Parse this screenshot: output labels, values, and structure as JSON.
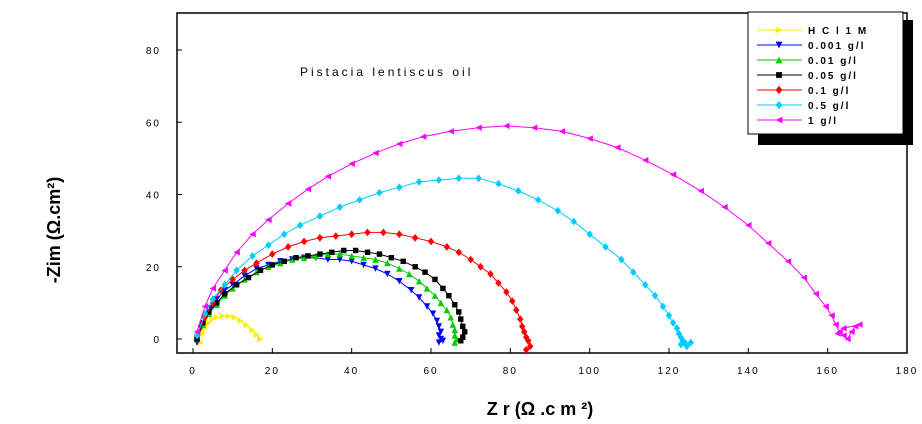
{
  "chart_data": {
    "type": "scatter",
    "xlabel": "Z r  (Ω .c m ²)",
    "ylabel": "-Zim  (Ω.cm²)",
    "xlim": [
      -5,
      180
    ],
    "ylim": [
      -4,
      90
    ],
    "xticks": [
      "0",
      "20",
      "40",
      "60",
      "80",
      "100",
      "120",
      "140",
      "160",
      "180"
    ],
    "yticks": [
      "0",
      "20",
      "40",
      "60",
      "80"
    ],
    "grid": false,
    "legend_position": "top-right",
    "annotation": "Pistacia lentiscus oil",
    "series": [
      {
        "name": "H C l 1 M",
        "color": "#ffee00",
        "marker": "triangle-right",
        "x": [
          2,
          2.5,
          3,
          4,
          5,
          6,
          7.5,
          9,
          10.5,
          12,
          13.5,
          15,
          16,
          17
        ],
        "y": [
          -1,
          1.5,
          3,
          4.5,
          5.5,
          6,
          6.3,
          6.3,
          6,
          5,
          3.8,
          2.5,
          1.2,
          0
        ]
      },
      {
        "name": "0.001 g/l",
        "color": "#0000ff",
        "marker": "triangle-down",
        "x": [
          1,
          2,
          3,
          4.5,
          6,
          8,
          10,
          13,
          16,
          19,
          22,
          25,
          28,
          31,
          34,
          37,
          40,
          43,
          46,
          49,
          52,
          55,
          57,
          59,
          60.5,
          61.5,
          62,
          62.5,
          62,
          62.5,
          63,
          62
        ],
        "y": [
          -1,
          3,
          6,
          8.5,
          11,
          13.5,
          15,
          17.5,
          19.5,
          20.5,
          21.5,
          22,
          22.5,
          22.5,
          22,
          22,
          21.5,
          20.5,
          19.5,
          18,
          16,
          13.5,
          11.5,
          9,
          7,
          5,
          3.5,
          2,
          1,
          0,
          -0.5,
          -1
        ]
      },
      {
        "name": "0.01 g/l",
        "color": "#00cc00",
        "marker": "triangle-up",
        "x": [
          1,
          2.5,
          4,
          6,
          8,
          10,
          13,
          16,
          19,
          22,
          25,
          28,
          31,
          34,
          37,
          40,
          43,
          46,
          49,
          52,
          54.5,
          57,
          59,
          61,
          62.5,
          64,
          65,
          65.5,
          66,
          66,
          66.5,
          66
        ],
        "y": [
          0,
          4,
          7,
          9.5,
          12,
          14,
          16.5,
          18.5,
          20,
          21,
          22,
          22.5,
          23,
          23.5,
          23.5,
          23,
          22.5,
          22,
          21,
          19.5,
          18,
          16,
          14,
          12,
          10,
          8,
          6,
          4,
          2.5,
          1,
          0,
          -1
        ]
      },
      {
        "name": "0.05 g/l",
        "color": "#000000",
        "marker": "square",
        "x": [
          1,
          2.5,
          4,
          6,
          8,
          11,
          14,
          17,
          20,
          23,
          26,
          29,
          32,
          35,
          38,
          41,
          44,
          47,
          50,
          53,
          56,
          58.5,
          61,
          63,
          64.5,
          66,
          67,
          67.5,
          68,
          68.5,
          68,
          67.5
        ],
        "y": [
          0,
          4.5,
          7.5,
          10,
          12.5,
          15,
          17,
          19,
          20.5,
          21.5,
          22.5,
          23,
          23.5,
          24,
          24.5,
          24.5,
          24,
          23.5,
          22.5,
          21.5,
          20,
          18.5,
          16.5,
          14,
          12,
          9.5,
          7.5,
          5.5,
          3.5,
          2,
          0.5,
          -0.5
        ]
      },
      {
        "name": "0.1 g/l",
        "color": "#ff0000",
        "marker": "diamond",
        "x": [
          1,
          3,
          5,
          7,
          10,
          13,
          16,
          20,
          24,
          28,
          32,
          36,
          40,
          44,
          48,
          52,
          56,
          60,
          64,
          67,
          70,
          72.5,
          75,
          77,
          79,
          80.5,
          81.5,
          82.5,
          83,
          83.5,
          84,
          84.5,
          85,
          84
        ],
        "y": [
          1,
          6,
          10,
          13.5,
          16.5,
          19,
          21,
          23.5,
          25.5,
          27,
          28,
          28.5,
          29,
          29.5,
          29.5,
          29,
          28,
          27,
          25.5,
          24,
          22,
          20,
          18,
          15.5,
          13,
          10.5,
          8,
          5.5,
          3.5,
          2,
          0.5,
          -0.5,
          -2,
          -3
        ]
      },
      {
        "name": "0.5 g/l",
        "color": "#00ccff",
        "marker": "diamond",
        "x": [
          1,
          3,
          5,
          8,
          11,
          15,
          19,
          23,
          27,
          32,
          37,
          42,
          47,
          52,
          57,
          62,
          67,
          72,
          77,
          82,
          87,
          92,
          96,
          100,
          104,
          108,
          111,
          114,
          116.5,
          118.5,
          120,
          121,
          122,
          122.5,
          123,
          123.5,
          124,
          123,
          124.5,
          125.5
        ],
        "y": [
          1,
          7,
          11,
          15,
          19,
          23,
          26,
          29,
          31.5,
          34,
          36.5,
          38.5,
          40.5,
          42,
          43.5,
          44,
          44.5,
          44.5,
          43,
          41,
          38.5,
          35.5,
          32.5,
          29,
          25.5,
          22,
          18.5,
          15,
          12,
          9,
          6.5,
          4.5,
          3,
          1.5,
          0.5,
          -0.5,
          -1,
          -1.5,
          -2,
          -1
        ]
      },
      {
        "name": "1 g/l",
        "color": "#ff00ff",
        "marker": "triangle-left",
        "x": [
          1,
          3,
          5,
          8,
          11,
          15,
          19,
          24,
          29,
          34,
          40,
          46,
          52,
          58,
          65,
          72,
          79,
          86,
          93,
          100,
          107,
          114,
          121,
          128,
          134,
          140,
          145,
          150,
          154,
          157,
          159.5,
          161,
          162,
          163,
          164,
          165,
          166,
          167,
          168,
          164,
          162.5
        ],
        "y": [
          2,
          9,
          14,
          19,
          24,
          29,
          33,
          37.5,
          41.5,
          45,
          48.5,
          51.5,
          54,
          56,
          57.5,
          58.5,
          59,
          58.5,
          57.5,
          55.5,
          53,
          49.5,
          45.5,
          41,
          36.5,
          31.5,
          26.5,
          21.5,
          17,
          12.5,
          9,
          6.5,
          4,
          2,
          1,
          0,
          2,
          3.5,
          4,
          3,
          1.5
        ]
      }
    ]
  }
}
